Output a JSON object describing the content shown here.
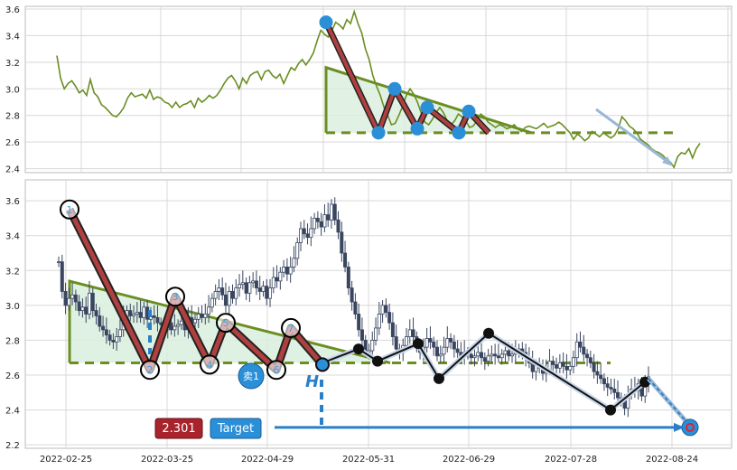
{
  "chart_data": [
    {
      "type": "line",
      "panel": "overview",
      "title": "",
      "xlabel": "",
      "ylabel": "",
      "ylim": [
        2.37,
        3.62
      ],
      "y_ticks": [
        "2.4",
        "2.6",
        "2.8",
        "3.0",
        "3.2",
        "3.4",
        "3.6"
      ],
      "grid": true,
      "line_color": "#6b8e23",
      "series": [
        {
          "values": [
            3.25,
            3.08,
            3.0,
            3.04,
            3.06,
            3.02,
            2.97,
            2.99,
            2.95,
            3.07,
            2.97,
            2.94,
            2.88,
            2.86,
            2.83,
            2.8,
            2.79,
            2.82,
            2.86,
            2.93,
            2.97,
            2.94,
            2.95,
            2.96,
            2.93,
            2.99,
            2.92,
            2.94,
            2.93,
            2.9,
            2.89,
            2.86,
            2.9,
            2.86,
            2.88,
            2.89,
            2.91,
            2.86,
            2.93,
            2.9,
            2.92,
            2.95,
            2.93,
            2.95,
            2.99,
            3.04,
            3.08,
            3.1,
            3.06,
            3.0,
            3.08,
            3.04,
            3.1,
            3.12,
            3.13,
            3.07,
            3.13,
            3.14,
            3.1,
            3.08,
            3.11,
            3.04,
            3.1,
            3.16,
            3.14,
            3.19,
            3.22,
            3.18,
            3.22,
            3.27,
            3.36,
            3.44,
            3.41,
            3.39,
            3.44,
            3.5,
            3.48,
            3.45,
            3.52,
            3.49,
            3.58,
            3.49,
            3.42,
            3.3,
            3.22,
            3.1,
            3.02,
            2.95,
            2.86,
            2.8,
            2.73,
            2.74,
            2.8,
            2.87,
            2.95,
            3.0,
            2.96,
            2.9,
            2.82,
            2.75,
            2.73,
            2.77,
            2.82,
            2.86,
            2.82,
            2.76,
            2.73,
            2.76,
            2.81,
            2.79,
            2.76,
            2.71,
            2.72,
            2.76,
            2.81,
            2.79,
            2.75,
            2.73,
            2.71,
            2.73,
            2.72,
            2.7,
            2.71,
            2.73,
            2.7,
            2.68,
            2.71,
            2.72,
            2.71,
            2.7,
            2.72,
            2.74,
            2.71,
            2.72,
            2.73,
            2.75,
            2.73,
            2.7,
            2.67,
            2.62,
            2.66,
            2.64,
            2.61,
            2.63,
            2.68,
            2.66,
            2.64,
            2.67,
            2.65,
            2.63,
            2.65,
            2.7,
            2.79,
            2.76,
            2.72,
            2.7,
            2.67,
            2.62,
            2.6,
            2.58,
            2.55,
            2.53,
            2.52,
            2.5,
            2.47,
            2.45,
            2.41,
            2.49,
            2.52,
            2.51,
            2.55,
            2.48,
            2.55,
            2.59
          ]
        }
      ],
      "pattern_points": [
        3.5,
        2.67,
        3.0,
        2.7,
        2.86,
        2.67,
        2.83,
        2.67
      ],
      "support_level": 2.67,
      "resistance_start": 3.16
    },
    {
      "type": "candlestick",
      "panel": "detail",
      "title": "",
      "xlabel": "",
      "ylabel": "",
      "ylim": [
        2.18,
        3.72
      ],
      "y_ticks": [
        "2.2",
        "2.4",
        "2.6",
        "2.8",
        "3.0",
        "3.2",
        "3.4",
        "3.6"
      ],
      "x_ticks": [
        "2022-02-25",
        "2022-03-25",
        "2022-04-29",
        "2022-05-31",
        "2022-06-29",
        "2022-07-28",
        "2022-08-24"
      ],
      "grid": true,
      "pattern_labels": [
        "1",
        "2",
        "3",
        "4",
        "5",
        "6",
        "7"
      ],
      "pattern_values": [
        3.55,
        2.63,
        3.05,
        2.66,
        2.9,
        2.63,
        2.87
      ],
      "black_path_values": [
        2.67,
        2.75,
        2.68,
        2.78,
        2.58,
        2.84,
        2.4,
        2.56
      ],
      "support_level": 2.67,
      "sell_label": "卖1",
      "h_label": "H",
      "price_badge": "2.301",
      "target_badge": "Target",
      "target_value": 2.3,
      "colors": {
        "pattern_red": "#b04040",
        "triangle_green": "#6b8e23",
        "fill_green": "#d9eedd",
        "arrow_blue": "#2a80c8",
        "candle_dark": "#3a4660"
      }
    }
  ]
}
